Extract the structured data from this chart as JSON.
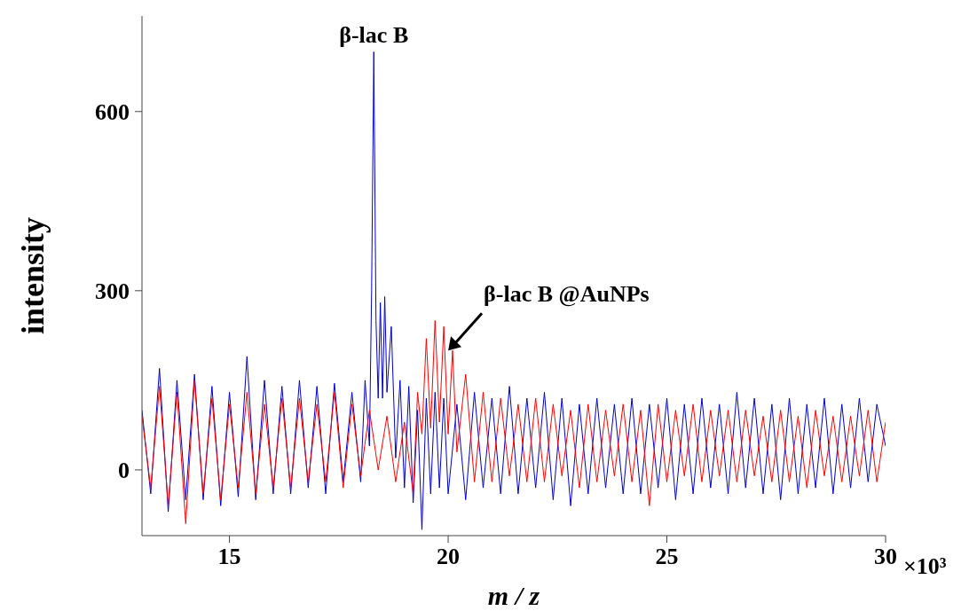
{
  "chart_data": {
    "type": "line",
    "xlabel": "m / z",
    "ylabel": "intensity",
    "xlim": [
      13,
      30
    ],
    "xticks": [
      15,
      20,
      25,
      30
    ],
    "ylim": [
      -110,
      760
    ],
    "yticks": [
      0,
      300,
      600
    ],
    "grid": false,
    "marker": "none",
    "line_style": "solid",
    "annotations": [
      {
        "text": "β-lac B",
        "x": 18.3,
        "y": 700
      },
      {
        "text": "β-lac B @AuNPs",
        "x": 20,
        "y": 200
      },
      "×10³"
    ],
    "series": [
      {
        "color": "#0000cc",
        "x": [
          13.0,
          13.2,
          13.4,
          13.6,
          13.8,
          14.0,
          14.2,
          14.4,
          14.6,
          14.8,
          15.0,
          15.2,
          15.4,
          15.6,
          15.8,
          16.0,
          16.2,
          16.4,
          16.6,
          16.8,
          17.0,
          17.2,
          17.4,
          17.6,
          17.8,
          18.0,
          18.1,
          18.2,
          18.25,
          18.3,
          18.35,
          18.4,
          18.45,
          18.5,
          18.55,
          18.6,
          18.7,
          18.8,
          18.9,
          19.0,
          19.1,
          19.2,
          19.3,
          19.4,
          19.5,
          19.6,
          19.7,
          19.8,
          19.9,
          20.0,
          20.2,
          20.4,
          20.6,
          20.8,
          21.0,
          21.2,
          21.4,
          21.6,
          21.8,
          22.0,
          22.2,
          22.4,
          22.6,
          22.8,
          23.0,
          23.2,
          23.4,
          23.6,
          23.8,
          24.0,
          24.2,
          24.4,
          24.6,
          24.8,
          25.0,
          25.2,
          25.4,
          25.6,
          25.8,
          26.0,
          26.2,
          26.4,
          26.6,
          26.8,
          27.0,
          27.2,
          27.4,
          27.6,
          27.8,
          28.0,
          28.2,
          28.4,
          28.6,
          28.8,
          29.0,
          29.2,
          29.4,
          29.6,
          29.8,
          30.0
        ],
        "values": [
          100,
          -40,
          170,
          -70,
          150,
          -50,
          160,
          -50,
          140,
          -60,
          130,
          -45,
          190,
          -50,
          150,
          -40,
          140,
          -40,
          150,
          -30,
          140,
          -40,
          145,
          -20,
          130,
          -20,
          150,
          40,
          300,
          700,
          250,
          120,
          280,
          120,
          290,
          130,
          240,
          20,
          150,
          -30,
          140,
          -55,
          100,
          -100,
          120,
          -40,
          130,
          -30,
          120,
          -40,
          110,
          -50,
          130,
          -30,
          120,
          -40,
          140,
          -40,
          120,
          -30,
          130,
          -50,
          120,
          -60,
          110,
          -40,
          120,
          -30,
          110,
          -40,
          120,
          -40,
          110,
          -30,
          120,
          -50,
          110,
          -40,
          120,
          -30,
          110,
          -40,
          130,
          -30,
          120,
          -40,
          110,
          -50,
          120,
          -40,
          110,
          -30,
          120,
          -40,
          110,
          -30,
          120,
          -20,
          110,
          40
        ]
      },
      {
        "color": "#ff0000",
        "x": [
          13.0,
          13.2,
          13.4,
          13.6,
          13.8,
          14.0,
          14.2,
          14.4,
          14.6,
          14.8,
          15.0,
          15.2,
          15.4,
          15.6,
          15.8,
          16.0,
          16.2,
          16.4,
          16.6,
          16.8,
          17.0,
          17.2,
          17.4,
          17.6,
          17.8,
          18.0,
          18.2,
          18.4,
          18.6,
          18.8,
          19.0,
          19.2,
          19.3,
          19.4,
          19.5,
          19.6,
          19.7,
          19.8,
          19.9,
          20.0,
          20.1,
          20.2,
          20.4,
          20.6,
          20.8,
          21.0,
          21.2,
          21.4,
          21.6,
          21.8,
          22.0,
          22.2,
          22.4,
          22.6,
          22.8,
          23.0,
          23.2,
          23.4,
          23.6,
          23.8,
          24.0,
          24.2,
          24.4,
          24.6,
          24.8,
          25.0,
          25.2,
          25.4,
          25.6,
          25.8,
          26.0,
          26.2,
          26.4,
          26.6,
          26.8,
          27.0,
          27.2,
          27.4,
          27.6,
          27.8,
          28.0,
          28.2,
          28.4,
          28.6,
          28.8,
          29.0,
          29.2,
          29.4,
          29.6,
          29.8,
          30.0
        ],
        "values": [
          90,
          -30,
          140,
          -60,
          130,
          -90,
          150,
          -40,
          120,
          -50,
          110,
          -30,
          130,
          -40,
          110,
          -30,
          120,
          -30,
          120,
          -20,
          110,
          -20,
          130,
          -30,
          110,
          -10,
          100,
          0,
          90,
          -20,
          80,
          -40,
          130,
          60,
          220,
          70,
          250,
          80,
          240,
          60,
          200,
          30,
          160,
          -20,
          130,
          -20,
          120,
          -10,
          110,
          -20,
          120,
          -20,
          110,
          -10,
          100,
          -30,
          110,
          -20,
          100,
          -10,
          110,
          -20,
          100,
          -60,
          110,
          -20,
          100,
          -10,
          110,
          -20,
          100,
          -10,
          100,
          -20,
          100,
          -10,
          90,
          -20,
          100,
          -20,
          90,
          -30,
          100,
          -10,
          90,
          -20,
          90,
          -10,
          100,
          -20,
          80
        ]
      }
    ]
  }
}
